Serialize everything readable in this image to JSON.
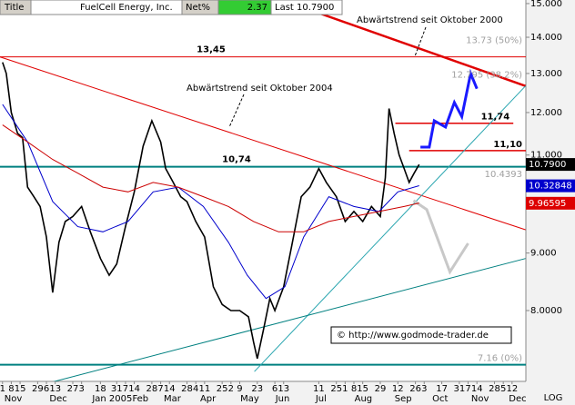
{
  "header": {
    "title_tab": "Title",
    "name": "FuelCell Energy, Inc.",
    "net_label": "Net%",
    "net_value": "2.37",
    "last": "Last 10.7900"
  },
  "chart_data": {
    "type": "line",
    "log_scale": true,
    "xlim": [
      -2,
      417
    ],
    "ylim": [
      6.92,
      15.11
    ],
    "yticks": [
      {
        "value": 15,
        "label": "15.000"
      },
      {
        "value": 14,
        "label": "14.000"
      },
      {
        "value": 13,
        "label": "13.000"
      },
      {
        "value": 12,
        "label": "12.000"
      },
      {
        "value": 11,
        "label": "11.000"
      },
      {
        "value": 9,
        "label": "9.000"
      },
      {
        "value": 8,
        "label": "8.0000"
      }
    ],
    "y_scale_label": "LOG",
    "xticks": [
      {
        "value": 0,
        "label": "1"
      },
      {
        "value": 7,
        "label": "8"
      },
      {
        "value": 14,
        "label": "15"
      },
      {
        "value": 28,
        "label": "29"
      },
      {
        "value": 35,
        "label": "6"
      },
      {
        "value": 42,
        "label": "13"
      },
      {
        "value": 56,
        "label": "27"
      },
      {
        "value": 63,
        "label": "3"
      },
      {
        "value": 78,
        "label": "18"
      },
      {
        "value": 91,
        "label": "31"
      },
      {
        "value": 98,
        "label": "7"
      },
      {
        "value": 105,
        "label": "14"
      },
      {
        "value": 119,
        "label": "28"
      },
      {
        "value": 126,
        "label": "7"
      },
      {
        "value": 133,
        "label": "14"
      },
      {
        "value": 147,
        "label": "28"
      },
      {
        "value": 154,
        "label": "4"
      },
      {
        "value": 161,
        "label": "11"
      },
      {
        "value": 175,
        "label": "25"
      },
      {
        "value": 182,
        "label": "2"
      },
      {
        "value": 189,
        "label": "9"
      },
      {
        "value": 203,
        "label": "23"
      },
      {
        "value": 217,
        "label": "6"
      },
      {
        "value": 224,
        "label": "13"
      },
      {
        "value": 252,
        "label": "11"
      },
      {
        "value": 266,
        "label": "25"
      },
      {
        "value": 273,
        "label": "1"
      },
      {
        "value": 280,
        "label": "8"
      },
      {
        "value": 287,
        "label": "15"
      },
      {
        "value": 301,
        "label": "29"
      },
      {
        "value": 315,
        "label": "12"
      },
      {
        "value": 329,
        "label": "26"
      },
      {
        "value": 336,
        "label": "3"
      },
      {
        "value": 350,
        "label": "17"
      },
      {
        "value": 364,
        "label": "31"
      },
      {
        "value": 371,
        "label": "7"
      },
      {
        "value": 378,
        "label": "14"
      },
      {
        "value": 392,
        "label": "28"
      },
      {
        "value": 399,
        "label": "5"
      },
      {
        "value": 406,
        "label": "12"
      }
    ],
    "month_ticks": [
      {
        "value": 0,
        "label": "Nov"
      },
      {
        "value": 36,
        "label": "Dec"
      },
      {
        "value": 70,
        "label": "Jan 2005"
      },
      {
        "value": 102,
        "label": "Feb"
      },
      {
        "value": 127,
        "label": "Mar"
      },
      {
        "value": 156,
        "label": "Apr"
      },
      {
        "value": 188,
        "label": "May"
      },
      {
        "value": 216,
        "label": "Jun"
      },
      {
        "value": 248,
        "label": "Jul"
      },
      {
        "value": 279,
        "label": "Aug"
      },
      {
        "value": 311,
        "label": "Sep"
      },
      {
        "value": 341,
        "label": "Oct"
      },
      {
        "value": 372,
        "label": "Nov"
      },
      {
        "value": 402,
        "label": "Dec"
      }
    ],
    "series": [
      {
        "color": "#000000",
        "x": [
          0,
          3,
          7,
          12,
          16,
          20,
          25,
          30,
          35,
          40,
          45,
          50,
          56,
          63,
          70,
          78,
          85,
          91,
          98,
          105,
          112,
          119,
          126,
          130,
          136,
          142,
          147,
          154,
          161,
          168,
          175,
          182,
          189,
          196,
          200,
          203,
          208,
          213,
          217,
          224,
          231,
          238,
          245,
          252,
          258,
          266,
          273,
          280,
          287,
          294,
          301,
          305,
          308,
          312,
          316,
          320,
          324,
          328,
          332
        ],
        "values": [
          13.3,
          13.0,
          12.0,
          11.5,
          11.4,
          10.3,
          10.1,
          9.9,
          9.3,
          8.3,
          9.2,
          9.6,
          9.7,
          9.9,
          9.4,
          8.9,
          8.6,
          8.8,
          9.5,
          10.2,
          11.2,
          11.8,
          11.3,
          10.7,
          10.4,
          10.1,
          10.0,
          9.6,
          9.3,
          8.4,
          8.1,
          8.0,
          8.0,
          7.9,
          7.5,
          7.25,
          7.7,
          8.2,
          8.0,
          8.4,
          9.2,
          10.1,
          10.3,
          10.7,
          10.4,
          10.1,
          9.6,
          9.8,
          9.6,
          9.9,
          9.7,
          10.5,
          12.1,
          11.5,
          11.0,
          10.7,
          10.4,
          10.6,
          10.79
        ]
      },
      {
        "color": "#0000cc",
        "x": [
          0,
          20,
          40,
          60,
          80,
          100,
          120,
          140,
          160,
          180,
          195,
          210,
          225,
          240,
          260,
          280,
          300,
          315,
          332
        ],
        "values": [
          12.2,
          11.3,
          10.0,
          9.5,
          9.4,
          9.6,
          10.2,
          10.3,
          9.9,
          9.2,
          8.6,
          8.2,
          8.4,
          9.3,
          10.1,
          9.9,
          9.8,
          10.2,
          10.33
        ]
      },
      {
        "color": "#cc0000",
        "x": [
          0,
          20,
          40,
          60,
          80,
          100,
          120,
          140,
          160,
          180,
          200,
          220,
          240,
          260,
          280,
          300,
          320,
          332
        ],
        "values": [
          11.7,
          11.3,
          10.9,
          10.6,
          10.3,
          10.2,
          10.4,
          10.3,
          10.1,
          9.9,
          9.6,
          9.4,
          9.4,
          9.6,
          9.7,
          9.8,
          9.9,
          9.97
        ]
      }
    ],
    "levels": [
      {
        "value": 13.45,
        "label": "13,45",
        "color": "#e00000"
      },
      {
        "value": 10.74,
        "label": "10,74",
        "color": "#008080"
      },
      {
        "value": 7.16,
        "color": "#008080"
      }
    ],
    "short_levels": [
      {
        "value": 11.74,
        "label": "11,74",
        "x": [
          313,
          407
        ],
        "color": "#e00000"
      },
      {
        "value": 11.1,
        "label": "11,10",
        "x": [
          324,
          417
        ],
        "color": "#e00000"
      }
    ],
    "trend_lines": [
      {
        "x": [
          222.5,
          416.7
        ],
        "values": [
          15.11,
          12.67
        ],
        "color": "#e00000"
      },
      {
        "x": [
          -2.2,
          416.7
        ],
        "values": [
          13.45,
          9.44
        ],
        "color": "#e00000"
      },
      {
        "x": [
          200.7,
          416.7
        ],
        "values": [
          7.06,
          12.67
        ],
        "color": "#2aa6b0"
      },
      {
        "x": [
          -2.2,
          416.7
        ],
        "values": [
          6.72,
          8.9
        ],
        "color": "#008080"
      },
      {
        "x": [
          333,
          340,
          344,
          353,
          360,
          366,
          373,
          378
        ],
        "values": [
          11.18,
          11.18,
          11.8,
          11.65,
          12.25,
          11.9,
          13.0,
          12.6
        ],
        "color": "#1a1aff"
      },
      {
        "x": [
          327.5,
          338,
          356.5,
          371
        ],
        "values": [
          10.02,
          9.84,
          8.66,
          9.18
        ],
        "color": "#c8c8c8"
      }
    ],
    "fib_labels": [
      {
        "value": 13.73,
        "label": "13.73 (50%)"
      },
      {
        "value": 12.795,
        "label": "12.795 (38.2%)"
      },
      {
        "value": 10.4393,
        "label": "10.4393"
      },
      {
        "value": 7.16,
        "label": "7.16 (0%)"
      }
    ],
    "price_tags": [
      {
        "value": 10.79,
        "label": "10.7900",
        "color": "#000000"
      },
      {
        "value": 10.32848,
        "label": "10.32848",
        "color": "#0000cc"
      },
      {
        "value": 9.96595,
        "label": "9.96595",
        "color": "#dd0000"
      }
    ],
    "annotations": [
      "Abwärtstrend seit Oktober 2004",
      "Abwärtstrend seit Oktober 2000"
    ],
    "copyright": "© http://www.godmode-trader.de"
  }
}
